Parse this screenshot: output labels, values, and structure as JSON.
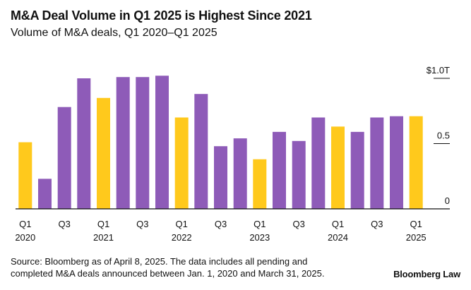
{
  "header": {
    "title": "M&A Deal Volume in Q1 2025 is Highest Since 2021",
    "subtitle": "Volume of M&A deals, Q1 2020–Q1 2025"
  },
  "footer": {
    "source_line1": "Source: Bloomberg as of April 8, 2025. The data includes all pending and",
    "source_line2": "completed M&A deals announced between Jan. 1, 2020 and March 31, 2025.",
    "brand": "Bloomberg Law"
  },
  "colors": {
    "q1": "#FFC91C",
    "other": "#8E5BB8",
    "axis": "#111111"
  },
  "chart_data": {
    "type": "bar",
    "title": "M&A Deal Volume in Q1 2025 is Highest Since 2021",
    "subtitle": "Volume of M&A deals, Q1 2020–Q1 2025",
    "xlabel": "",
    "ylabel": "",
    "unit": "trillion USD",
    "ylim": [
      0,
      1.0
    ],
    "yticks": [
      {
        "value": 0,
        "label": "0"
      },
      {
        "value": 0.5,
        "label": "0.5"
      },
      {
        "value": 1.0,
        "label": "$1.0T"
      }
    ],
    "grid": false,
    "legend": "none",
    "categories": [
      "Q1 2020",
      "Q2 2020",
      "Q3 2020",
      "Q4 2020",
      "Q1 2021",
      "Q2 2021",
      "Q3 2021",
      "Q4 2021",
      "Q1 2022",
      "Q2 2022",
      "Q3 2022",
      "Q4 2022",
      "Q1 2023",
      "Q2 2023",
      "Q3 2023",
      "Q4 2023",
      "Q1 2024",
      "Q2 2024",
      "Q3 2024",
      "Q4 2024",
      "Q1 2025"
    ],
    "values": [
      0.51,
      0.23,
      0.78,
      1.0,
      0.85,
      1.01,
      1.01,
      1.02,
      0.7,
      0.88,
      0.48,
      0.54,
      0.38,
      0.59,
      0.52,
      0.7,
      0.63,
      0.59,
      0.7,
      0.71,
      0.71
    ],
    "highlight_q1": true,
    "xtick_labels": [
      {
        "index": 0,
        "lines": [
          "Q1",
          "2020"
        ]
      },
      {
        "index": 2,
        "lines": [
          "Q3",
          ""
        ]
      },
      {
        "index": 4,
        "lines": [
          "Q1",
          "2021"
        ]
      },
      {
        "index": 6,
        "lines": [
          "Q3",
          ""
        ]
      },
      {
        "index": 8,
        "lines": [
          "Q1",
          "2022"
        ]
      },
      {
        "index": 10,
        "lines": [
          "Q3",
          ""
        ]
      },
      {
        "index": 12,
        "lines": [
          "Q1",
          "2023"
        ]
      },
      {
        "index": 14,
        "lines": [
          "Q3",
          ""
        ]
      },
      {
        "index": 16,
        "lines": [
          "Q1",
          "2024"
        ]
      },
      {
        "index": 18,
        "lines": [
          "Q3",
          ""
        ]
      },
      {
        "index": 20,
        "lines": [
          "Q1",
          "2025"
        ]
      }
    ]
  }
}
